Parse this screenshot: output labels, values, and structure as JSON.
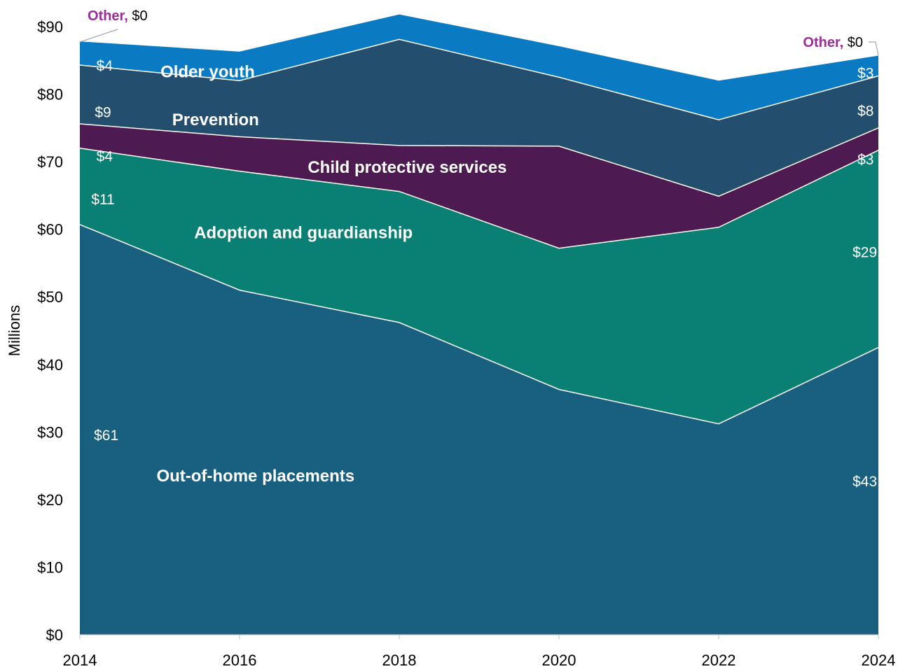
{
  "chart_data": {
    "type": "area",
    "stacked": true,
    "x": [
      "2014",
      "2016",
      "2018",
      "2020",
      "2022",
      "2024"
    ],
    "ylabel": "Millions",
    "ylim": [
      0,
      90
    ],
    "yticks": [
      "$0",
      "$10",
      "$20",
      "$30",
      "$40",
      "$50",
      "$60",
      "$70",
      "$80",
      "$90"
    ],
    "grid": false,
    "legend": "none (direct labels)",
    "series": [
      {
        "name": "Out-of-home placements",
        "color": "#195f80",
        "values": [
          60.7,
          51.0,
          46.2,
          36.3,
          31.2,
          42.5
        ]
      },
      {
        "name": "Adoption and guardianship",
        "color": "#0a7f73",
        "values": [
          11.3,
          17.6,
          19.4,
          20.9,
          29.1,
          29.2
        ]
      },
      {
        "name": "Child protective services",
        "color": "#4e1a52",
        "values": [
          3.6,
          5.1,
          6.8,
          15.1,
          4.6,
          3.3
        ]
      },
      {
        "name": "Prevention",
        "color": "#234e6e",
        "values": [
          8.7,
          8.3,
          15.7,
          10.2,
          11.3,
          7.7
        ]
      },
      {
        "name": "Older youth",
        "color": "#0a7bc2",
        "values": [
          3.5,
          4.3,
          3.7,
          4.6,
          5.8,
          3.0
        ]
      },
      {
        "name": "Other",
        "color": "#ffffff",
        "values": [
          0.1,
          0.0,
          0.0,
          0.0,
          0.0,
          0.0
        ]
      }
    ],
    "series_labels": [
      {
        "text": "Out-of-home placements",
        "x": 2016.2,
        "y": 23.5
      },
      {
        "text": "Adoption and guardianship",
        "x": 2016.8,
        "y": 59.5
      },
      {
        "text": "Child protective services",
        "x": 2018.1,
        "y": 69.2
      },
      {
        "text": "Prevention",
        "x": 2015.7,
        "y": 76.2
      },
      {
        "text": "Older youth",
        "x": 2015.6,
        "y": 83.3
      }
    ],
    "data_labels": [
      {
        "text": "$61",
        "x": 2014.33,
        "y": 29.5
      },
      {
        "text": "$11",
        "x": 2014.29,
        "y": 64.4
      },
      {
        "text": "$4",
        "x": 2014.31,
        "y": 70.8
      },
      {
        "text": "$9",
        "x": 2014.29,
        "y": 77.3
      },
      {
        "text": "$4",
        "x": 2014.31,
        "y": 84.2
      },
      {
        "text": "$43",
        "x": 2023.83,
        "y": 22.7
      },
      {
        "text": "$29",
        "x": 2023.83,
        "y": 56.6
      },
      {
        "text": "$3",
        "x": 2023.84,
        "y": 70.3
      },
      {
        "text": "$8",
        "x": 2023.84,
        "y": 77.5
      },
      {
        "text": "$3",
        "x": 2023.84,
        "y": 83.1
      }
    ],
    "other_callouts": [
      {
        "name": "Other,",
        "value": "$0",
        "year": "2014"
      },
      {
        "name": "Other,",
        "value": "$0",
        "year": "2024"
      }
    ],
    "colors": {
      "other_text": "#9a2e94",
      "separator": "#ffffff"
    }
  }
}
